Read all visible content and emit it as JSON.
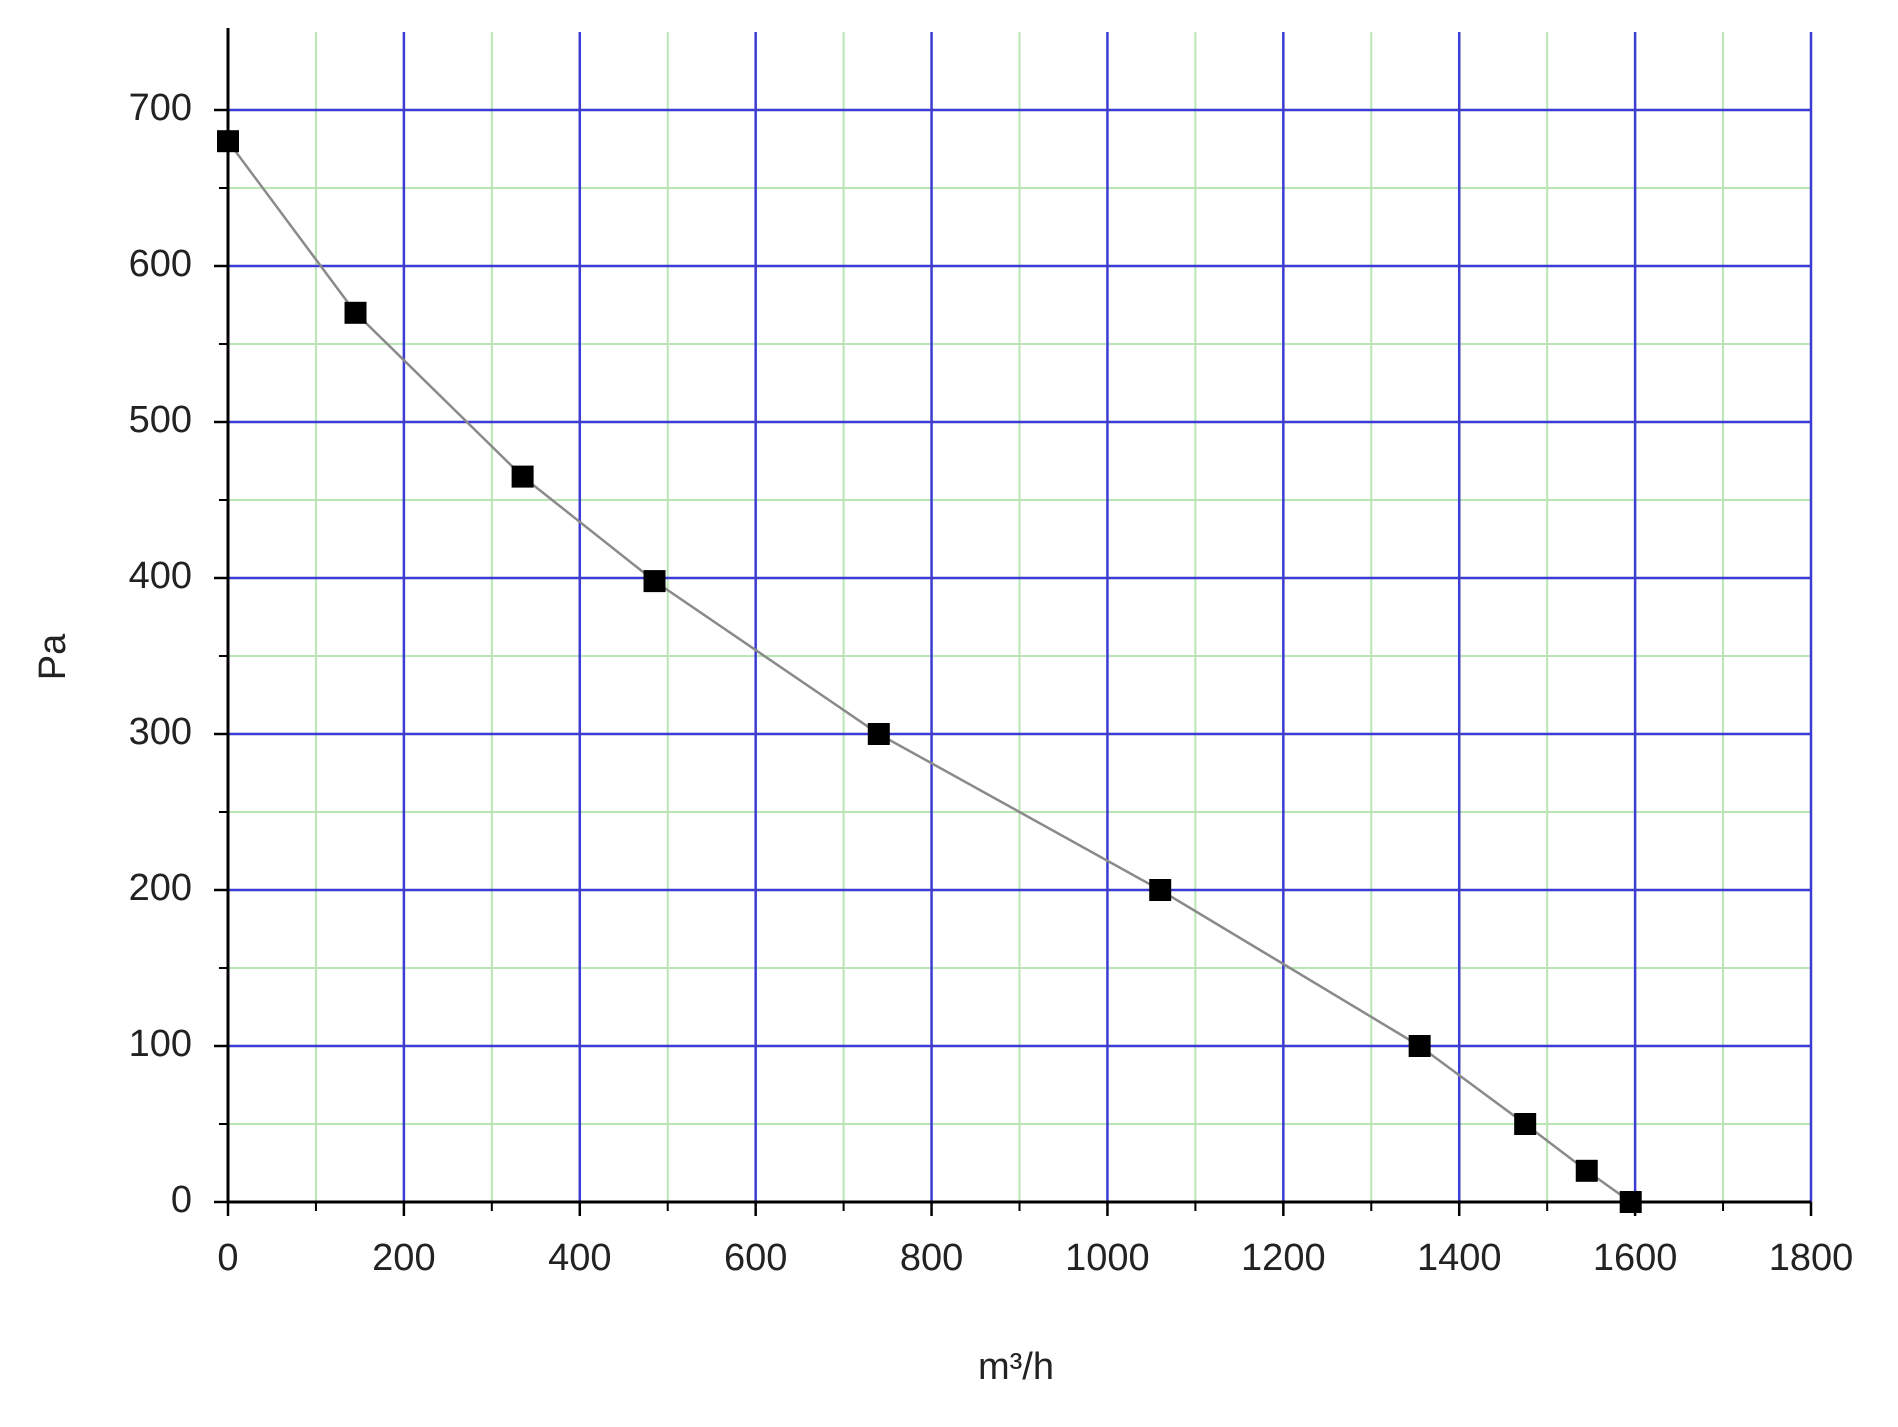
{
  "chart_data": {
    "type": "line",
    "x_label": "m³/h",
    "y_label": "Pa",
    "x": [
      0,
      145,
      335,
      485,
      740,
      1060,
      1355,
      1475,
      1545,
      1595
    ],
    "series": [
      {
        "color": "#000000",
        "values": [
          680,
          570,
          465,
          398,
          300,
          200,
          100,
          50,
          20,
          0
        ]
      }
    ],
    "xlim": [
      0,
      1800
    ],
    "ylim": [
      0,
      750
    ],
    "xticks": [
      0,
      200,
      400,
      600,
      800,
      1000,
      1200,
      1400,
      1600,
      1800
    ],
    "yticks": [
      0,
      100,
      200,
      300,
      400,
      500,
      600,
      700
    ],
    "x_minor_ticks": [
      100,
      300,
      500,
      700,
      900,
      1100,
      1300,
      1500,
      1700
    ],
    "y_minor_ticks": [
      50,
      150,
      250,
      350,
      450,
      550,
      650
    ],
    "grid": true,
    "grid_color": "#3c3cd2",
    "minor_grid_color": "#b9e6b4",
    "line_color": "#8a8a8a"
  }
}
